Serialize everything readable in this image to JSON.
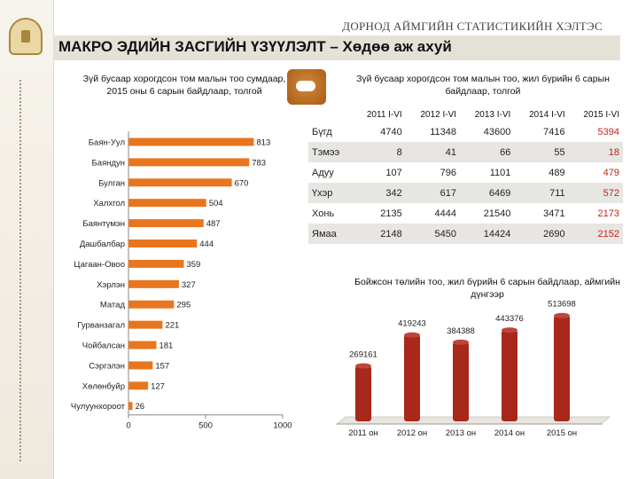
{
  "header": {
    "agency": "ДОРНОД АЙМГИЙН СТАТИСТИКИЙН ХЭЛТЭС",
    "title": "МАКРО ЭДИЙН ЗАСГИЙН ҮЗҮҮЛЭЛТ – Хөдөө аж ахуй"
  },
  "colors": {
    "bar_orange": "#e8761f",
    "bar_red": "#a8281c",
    "accent_red": "#c0261a"
  },
  "chart_data": [
    {
      "type": "bar",
      "orientation": "horizontal",
      "title": "Зүй бусаар хорогдсон том малын тоо сумдаар, 2015 оны 6 сарын байдлаар, толгой",
      "categories": [
        "Баян-Уул",
        "Баяндун",
        "Булган",
        "Халхгол",
        "Баянтүмэн",
        "Дашбалбар",
        "Цагаан-Овоо",
        "Хэрлэн",
        "Матад",
        "Гурванзагал",
        "Чойбалсан",
        "Сэргэлэн",
        "Хөлөнбуйр",
        "Чулуунхороот"
      ],
      "values": [
        813,
        783,
        670,
        504,
        487,
        444,
        359,
        327,
        295,
        221,
        181,
        157,
        127,
        26
      ],
      "xlim": [
        0,
        1000
      ],
      "xticks": [
        "0",
        "500",
        "1000"
      ]
    },
    {
      "type": "table",
      "title": "Зүй бусаар хорогдсон том малын тоо, жил бүрийн 6 сарын байдлаар, толгой",
      "columns": [
        "2011 I-VI",
        "2012 I-VI",
        "2013 I-VI",
        "2014 I-VI",
        "2015 I-VI"
      ],
      "rows": [
        {
          "label": "Бүгд",
          "values": [
            "4740",
            "11348",
            "43600",
            "7416",
            "5394"
          ]
        },
        {
          "label": "Тэмээ",
          "values": [
            "8",
            "41",
            "66",
            "55",
            "18"
          ]
        },
        {
          "label": "Адуу",
          "values": [
            "107",
            "796",
            "1101",
            "489",
            "479"
          ]
        },
        {
          "label": "Үхэр",
          "values": [
            "342",
            "617",
            "6469",
            "711",
            "572"
          ]
        },
        {
          "label": "Хонь",
          "values": [
            "2135",
            "4444",
            "21540",
            "3471",
            "2173"
          ]
        },
        {
          "label": "Ямаа",
          "values": [
            "2148",
            "5450",
            "14424",
            "2690",
            "2152"
          ]
        }
      ]
    },
    {
      "type": "bar",
      "orientation": "vertical",
      "title": "Бойжсон төлийн тоо, жил бүрийн 6 сарын байдлаар, аймгийн дүнгээр",
      "categories": [
        "2011 он",
        "2012 он",
        "2013 он",
        "2014 он",
        "2015 он"
      ],
      "values": [
        269161,
        419243,
        384388,
        443376,
        513698
      ],
      "value_labels": [
        "269161",
        "419243",
        "384388",
        "443376",
        "513698"
      ],
      "ylim": [
        0,
        560000
      ]
    }
  ]
}
